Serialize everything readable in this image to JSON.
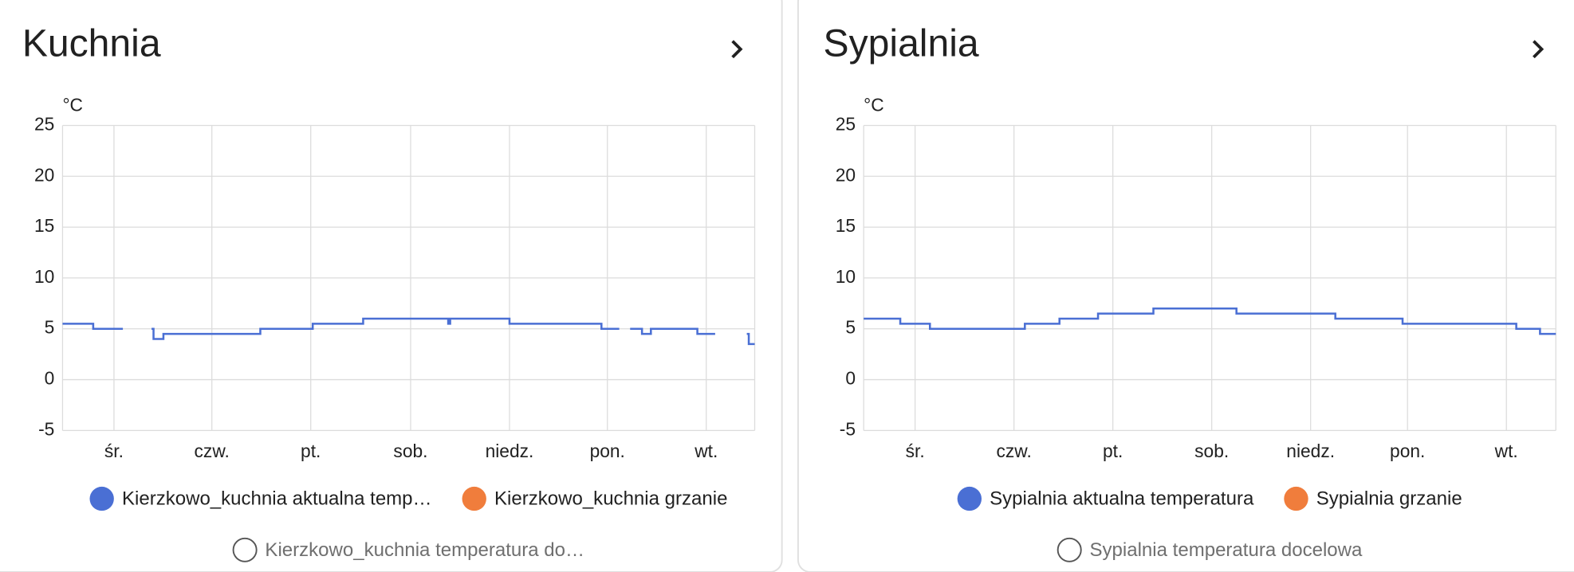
{
  "chart_data": [
    {
      "type": "line",
      "title": "Kuchnia",
      "y_label": "°C",
      "step": true,
      "grid": true,
      "xlim": [
        0,
        7
      ],
      "xticks": [
        {
          "value": 0.52,
          "label": "śr."
        },
        {
          "value": 1.51,
          "label": "czw."
        },
        {
          "value": 2.51,
          "label": "pt."
        },
        {
          "value": 3.52,
          "label": "sob."
        },
        {
          "value": 4.52,
          "label": "niedz."
        },
        {
          "value": 5.51,
          "label": "pon."
        },
        {
          "value": 6.51,
          "label": "wt."
        }
      ],
      "ylim": [
        -5,
        25
      ],
      "yticks": [
        -5,
        0,
        5,
        10,
        15,
        20,
        25
      ],
      "series": [
        {
          "name": "Kierzkowo_kuchnia aktualna temp…",
          "color": "#4a6fd4",
          "x": [
            0,
            0.31,
            0.61,
            0.62,
            0.9,
            0.92,
            1.02,
            2.0,
            2.53,
            3.04,
            3.9,
            3.92,
            4.52,
            4.55,
            5.45,
            5.63,
            5.64,
            5.74,
            5.86,
            5.95,
            6.39,
            6.42,
            6.6,
            6.61,
            6.92,
            6.94,
            7.0
          ],
          "values": [
            5.5,
            5.0,
            5.0,
            null,
            5.0,
            4.0,
            4.5,
            5.0,
            5.5,
            6.0,
            5.5,
            6.0,
            5.5,
            5.5,
            5.0,
            5.0,
            null,
            5.0,
            4.5,
            5.0,
            5.0,
            4.5,
            4.5,
            null,
            4.5,
            3.5,
            3.5
          ]
        },
        {
          "name": "Kierzkowo_kuchnia grzanie",
          "color": "#f07d3c"
        },
        {
          "name": "Kierzkowo_kuchnia temperatura do…",
          "hidden": true
        }
      ]
    },
    {
      "type": "line",
      "title": "Sypialnia",
      "y_label": "°C",
      "step": true,
      "grid": true,
      "xlim": [
        0,
        7
      ],
      "xticks": [
        {
          "value": 0.52,
          "label": "śr."
        },
        {
          "value": 1.52,
          "label": "czw."
        },
        {
          "value": 2.52,
          "label": "pt."
        },
        {
          "value": 3.52,
          "label": "sob."
        },
        {
          "value": 4.52,
          "label": "niedz."
        },
        {
          "value": 5.5,
          "label": "pon."
        },
        {
          "value": 6.5,
          "label": "wt."
        }
      ],
      "ylim": [
        -5,
        25
      ],
      "yticks": [
        -5,
        0,
        5,
        10,
        15,
        20,
        25
      ],
      "series": [
        {
          "name": "Sypialnia aktualna temperatura",
          "color": "#4a6fd4",
          "x": [
            0,
            0.37,
            0.67,
            1.63,
            1.98,
            2.37,
            2.93,
            3.77,
            4.77,
            5.45,
            6.6,
            6.84,
            7.0
          ],
          "values": [
            6,
            5.5,
            5,
            5.5,
            6,
            6.5,
            7,
            6.5,
            6,
            5.5,
            5,
            4.5,
            4.5
          ]
        },
        {
          "name": "Sypialnia grzanie",
          "color": "#f07d3c"
        },
        {
          "name": "Sypialnia temperatura docelowa",
          "hidden": true
        }
      ]
    }
  ]
}
